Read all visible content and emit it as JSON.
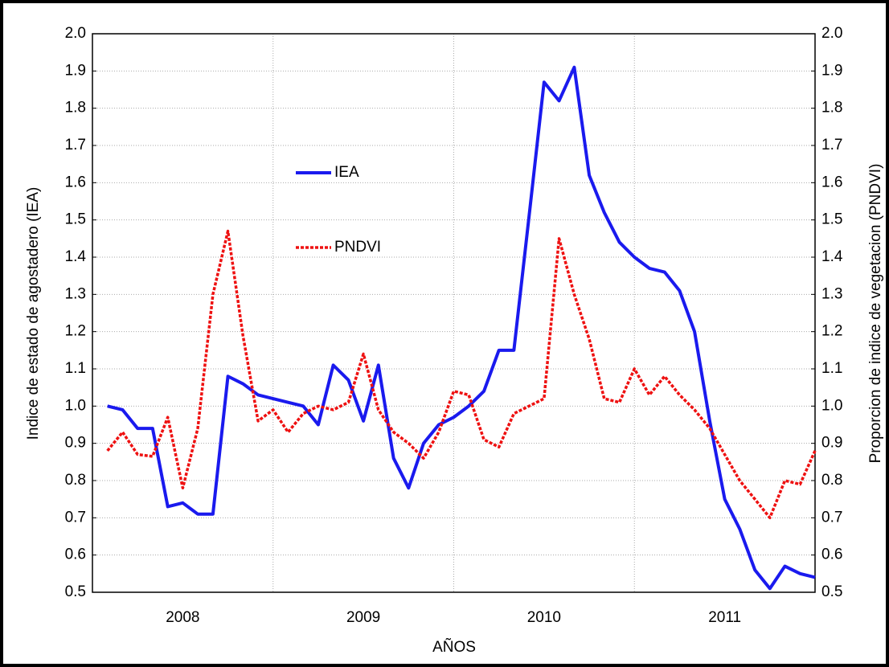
{
  "chart_data": {
    "type": "line",
    "xlabel": "AÑOS",
    "ylabel": "Indice de estado de agostadero (IEA)",
    "y2label": "Proporcion de indice de vegetacion (PNDVI)",
    "categories": [
      "2008",
      "2009",
      "2010",
      "2011"
    ],
    "xlim": [
      2008,
      2012
    ],
    "x": [
      2008.083,
      2008.167,
      2008.25,
      2008.333,
      2008.417,
      2008.5,
      2008.583,
      2008.667,
      2008.75,
      2008.833,
      2008.917,
      2009.0,
      2009.083,
      2009.167,
      2009.25,
      2009.333,
      2009.417,
      2009.5,
      2009.583,
      2009.667,
      2009.75,
      2009.833,
      2009.917,
      2010.0,
      2010.083,
      2010.167,
      2010.25,
      2010.333,
      2010.417,
      2010.5,
      2010.583,
      2010.667,
      2010.75,
      2010.833,
      2010.917,
      2011.0,
      2011.083,
      2011.167,
      2011.25,
      2011.333,
      2011.417,
      2011.5,
      2011.583,
      2011.667,
      2011.75,
      2011.833,
      2011.917,
      2012.0
    ],
    "ylim": [
      0.5,
      2.0
    ],
    "yticks": [
      0.5,
      0.6,
      0.7,
      0.8,
      0.9,
      {
        "value": 1.0,
        "label": "1.0"
      },
      1.1,
      1.2,
      1.3,
      1.4,
      1.5,
      1.6,
      1.7,
      1.8,
      1.9,
      {
        "value": 2.0,
        "label": "2.0"
      }
    ],
    "y2lim": [
      0.5,
      2.0
    ],
    "y2ticks": [
      0.5,
      0.6,
      0.7,
      0.8,
      0.9,
      {
        "value": 1.0,
        "label": "1.0"
      },
      1.1,
      1.2,
      1.3,
      1.4,
      1.5,
      1.6,
      1.7,
      1.8,
      1.9,
      {
        "value": 2.0,
        "label": "2.0"
      }
    ],
    "grid": true,
    "series": [
      {
        "name": "IEA",
        "color": "#1a1aee",
        "dashed": false,
        "values": [
          1.0,
          0.99,
          0.94,
          0.94,
          0.73,
          0.74,
          0.71,
          0.71,
          1.08,
          1.06,
          1.03,
          1.02,
          1.01,
          1.0,
          0.95,
          1.11,
          1.07,
          0.96,
          1.11,
          0.86,
          0.78,
          0.9,
          0.95,
          0.97,
          1.0,
          1.04,
          1.15,
          1.15,
          1.51,
          1.87,
          1.82,
          1.91,
          1.62,
          1.52,
          1.44,
          1.4,
          1.37,
          1.36,
          1.31,
          1.2,
          0.96,
          0.75,
          0.67,
          0.56,
          0.51,
          0.57,
          0.55,
          0.54
        ]
      },
      {
        "name": "PNDVI",
        "color": "#ee1111",
        "dashed": true,
        "axis": "y2",
        "values": [
          0.88,
          0.93,
          0.87,
          0.865,
          0.97,
          0.78,
          0.94,
          1.3,
          1.47,
          1.19,
          0.96,
          0.99,
          0.93,
          0.98,
          1.0,
          0.99,
          1.01,
          1.14,
          0.99,
          0.93,
          0.9,
          0.86,
          0.93,
          1.04,
          1.03,
          0.91,
          0.89,
          0.98,
          1.0,
          1.02,
          1.45,
          1.3,
          1.18,
          1.02,
          1.01,
          1.1,
          1.03,
          1.08,
          1.03,
          0.99,
          0.94,
          0.87,
          0.8,
          0.75,
          0.7,
          0.8,
          0.79,
          0.88
        ]
      }
    ]
  }
}
